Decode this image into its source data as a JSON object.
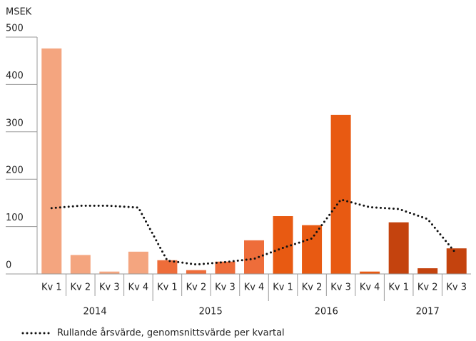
{
  "chart_data": {
    "type": "bar-line",
    "y_label": "MSEK",
    "groups": [
      {
        "label": "2014",
        "categories": [
          "Kv 1",
          "Kv 2",
          "Kv 3",
          "Kv 4"
        ]
      },
      {
        "label": "2015",
        "categories": [
          "Kv 1",
          "Kv 2",
          "Kv 3",
          "Kv 4"
        ]
      },
      {
        "label": "2016",
        "categories": [
          "Kv 1",
          "Kv 2",
          "Kv 3",
          "Kv 4"
        ]
      },
      {
        "label": "2017",
        "categories": [
          "Kv 1",
          "Kv 2",
          "Kv 3"
        ]
      }
    ],
    "bars": {
      "values": [
        476,
        40,
        5,
        47,
        29,
        8,
        26,
        71,
        122,
        103,
        336,
        5,
        109,
        12,
        54
      ],
      "group_colors": [
        "#f4a57f",
        "#ee6d3a",
        "#e85a12",
        "#c4430e"
      ]
    },
    "series": [
      {
        "name": "Rullande årsvärde, genomsnittsvärde per kvartal",
        "color": "#111111",
        "style": "dotted",
        "values": [
          139,
          144,
          144,
          140,
          28,
          20,
          25,
          32,
          55,
          75,
          157,
          141,
          137,
          116,
          42
        ]
      }
    ],
    "ylim": [
      0,
      500
    ],
    "yticks": [
      0,
      100,
      200,
      300,
      400,
      500
    ],
    "grid": false
  }
}
